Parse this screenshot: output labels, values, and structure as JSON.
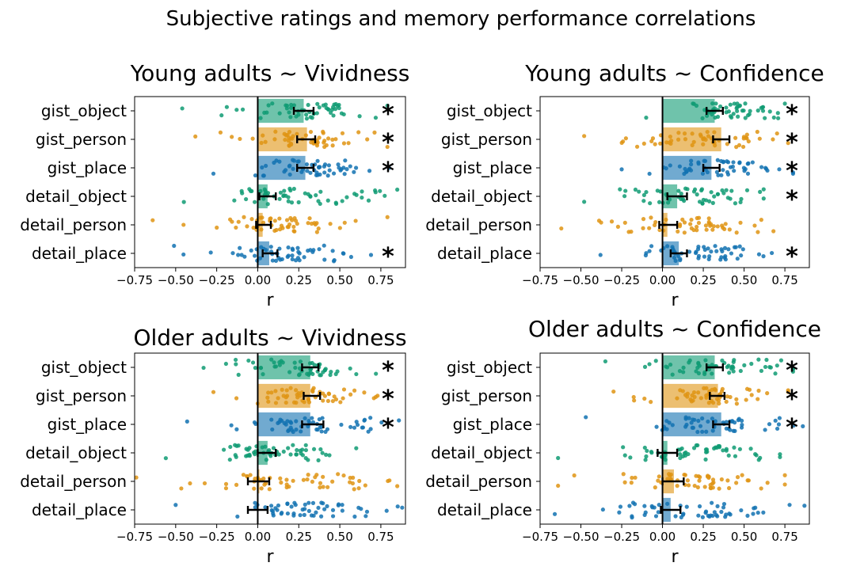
{
  "figure": {
    "suptitle": "Subjective ratings and memory performance correlations"
  },
  "colors": {
    "object": "#0f9b73",
    "person": "#df9413",
    "place": "#1272b1",
    "zero_line": "#000000",
    "errorbar": "#000000"
  },
  "chart_data": [
    {
      "type": "bar",
      "orientation": "horizontal",
      "title": "Young adults ~ Vividness",
      "xlabel": "r",
      "ylabel": "",
      "categories": [
        "gist_object",
        "gist_person",
        "gist_place",
        "detail_object",
        "detail_person",
        "detail_place"
      ],
      "values": [
        0.28,
        0.3,
        0.29,
        0.06,
        0.03,
        0.07
      ],
      "ci": [
        [
          0.22,
          0.34
        ],
        [
          0.24,
          0.35
        ],
        [
          0.24,
          0.34
        ],
        [
          0.01,
          0.11
        ],
        [
          -0.01,
          0.08
        ],
        [
          0.03,
          0.12
        ]
      ],
      "significant": [
        true,
        true,
        true,
        false,
        false,
        true
      ],
      "significance_marker": "*",
      "xlim": [
        -0.75,
        0.9
      ],
      "xticks": [
        "−0.75",
        "−0.50",
        "−0.25",
        "0.00",
        "0.25",
        "0.50",
        "0.75"
      ],
      "xtick_values": [
        -0.75,
        -0.5,
        -0.25,
        0,
        0.25,
        0.5,
        0.75
      ],
      "jitter_range": [
        [
          -0.46,
          0.79
        ],
        [
          -0.38,
          0.79
        ],
        [
          -0.27,
          0.8
        ],
        [
          -0.45,
          0.85
        ],
        [
          -0.64,
          0.79
        ],
        [
          -0.51,
          0.69
        ]
      ],
      "grid": false,
      "legend": "none"
    },
    {
      "type": "bar",
      "orientation": "horizontal",
      "title": "Young adults ~ Confidence",
      "xlabel": "r",
      "ylabel": "",
      "categories": [
        "gist_object",
        "gist_person",
        "gist_place",
        "detail_object",
        "detail_person",
        "detail_place"
      ],
      "values": [
        0.32,
        0.36,
        0.3,
        0.09,
        0.03,
        0.1
      ],
      "ci": [
        [
          0.27,
          0.37
        ],
        [
          0.31,
          0.41
        ],
        [
          0.25,
          0.35
        ],
        [
          0.03,
          0.15
        ],
        [
          -0.02,
          0.09
        ],
        [
          0.05,
          0.15
        ]
      ],
      "significant": [
        true,
        true,
        true,
        true,
        false,
        true
      ],
      "significance_marker": "*",
      "xlim": [
        -0.75,
        0.9
      ],
      "xticks": [
        "−0.75",
        "−0.50",
        "−0.25",
        "0.00",
        "0.25",
        "0.50",
        "0.75"
      ],
      "xtick_values": [
        -0.75,
        -0.5,
        -0.25,
        0,
        0.25,
        0.5,
        0.75
      ],
      "jitter_range": [
        [
          -0.1,
          0.75
        ],
        [
          -0.48,
          0.77
        ],
        [
          -0.25,
          0.8
        ],
        [
          -0.48,
          0.62
        ],
        [
          -0.62,
          0.68
        ],
        [
          -0.38,
          0.67
        ]
      ],
      "grid": false,
      "legend": "none"
    },
    {
      "type": "bar",
      "orientation": "horizontal",
      "title": "Older adults ~ Vividness",
      "xlabel": "r",
      "ylabel": "",
      "categories": [
        "gist_object",
        "gist_person",
        "gist_place",
        "detail_object",
        "detail_person",
        "detail_place"
      ],
      "values": [
        0.32,
        0.32,
        0.32,
        0.06,
        0.01,
        0.0
      ],
      "ci": [
        [
          0.27,
          0.37
        ],
        [
          0.28,
          0.38
        ],
        [
          0.27,
          0.4
        ],
        [
          0.0,
          0.11
        ],
        [
          -0.06,
          0.07
        ],
        [
          -0.06,
          0.06
        ]
      ],
      "significant": [
        true,
        true,
        true,
        false,
        false,
        false
      ],
      "significance_marker": "*",
      "xlim": [
        -0.75,
        0.9
      ],
      "xticks": [
        "−0.75",
        "−0.50",
        "−0.25",
        "0.00",
        "0.25",
        "0.50",
        "0.75"
      ],
      "xtick_values": [
        -0.75,
        -0.5,
        -0.25,
        0,
        0.25,
        0.5,
        0.75
      ],
      "jitter_range": [
        [
          -0.33,
          0.72
        ],
        [
          -0.27,
          0.73
        ],
        [
          -0.43,
          0.86
        ],
        [
          -0.56,
          0.6
        ],
        [
          -0.74,
          0.85
        ],
        [
          -0.5,
          0.88
        ]
      ],
      "grid": false,
      "legend": "none"
    },
    {
      "type": "bar",
      "orientation": "horizontal",
      "title": "Older adults ~ Confidence",
      "xlabel": "r",
      "ylabel": "",
      "categories": [
        "gist_object",
        "gist_person",
        "gist_place",
        "detail_object",
        "detail_person",
        "detail_place"
      ],
      "values": [
        0.32,
        0.34,
        0.36,
        0.03,
        0.07,
        0.05
      ],
      "ci": [
        [
          0.27,
          0.37
        ],
        [
          0.29,
          0.38
        ],
        [
          0.31,
          0.41
        ],
        [
          -0.03,
          0.09
        ],
        [
          0.0,
          0.13
        ],
        [
          -0.01,
          0.11
        ]
      ],
      "significant": [
        true,
        true,
        true,
        false,
        false,
        false
      ],
      "significance_marker": "*",
      "xlim": [
        -0.75,
        0.9
      ],
      "xticks": [
        "−0.75",
        "−0.50",
        "−0.25",
        "0.00",
        "0.25",
        "0.50",
        "0.75"
      ],
      "xtick_values": [
        -0.75,
        -0.5,
        -0.25,
        0,
        0.25,
        0.5,
        0.75
      ],
      "jitter_range": [
        [
          -0.35,
          0.8
        ],
        [
          -0.3,
          0.77
        ],
        [
          -0.47,
          0.86
        ],
        [
          -0.64,
          0.72
        ],
        [
          -0.64,
          0.75
        ],
        [
          -0.66,
          0.87
        ]
      ],
      "grid": false,
      "legend": "none"
    }
  ]
}
